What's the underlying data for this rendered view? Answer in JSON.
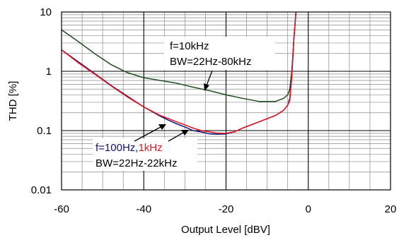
{
  "chart_data": {
    "type": "line",
    "xlabel": "Output Level  [dBV]",
    "ylabel": "THD  [%]",
    "xlim": [
      -60,
      20
    ],
    "ylim": [
      0.01,
      10
    ],
    "yscale": "log",
    "grid": true,
    "x_ticks": [
      "-60",
      "-40",
      "-20",
      "0",
      "20"
    ],
    "y_ticks": [
      "0.01",
      "0.1",
      "1",
      "10"
    ],
    "series": [
      {
        "color": "#1f4d1f",
        "x": [
          -60,
          -56,
          -52,
          -48,
          -44,
          -40,
          -36,
          -32,
          -28,
          -24,
          -20,
          -16,
          -12,
          -8,
          -6,
          -5,
          -4.5,
          -4,
          -3.5,
          -3
        ],
        "y": [
          5.0,
          3.2,
          2.0,
          1.3,
          0.95,
          0.78,
          0.7,
          0.63,
          0.54,
          0.47,
          0.4,
          0.35,
          0.31,
          0.31,
          0.35,
          0.4,
          0.5,
          1.0,
          3.5,
          10
        ]
      },
      {
        "color": "#10107a",
        "x": [
          -60,
          -56,
          -52,
          -48,
          -44,
          -40,
          -36,
          -34,
          -32,
          -30,
          -28,
          -26,
          -24,
          -22,
          -20,
          -18,
          -16,
          -12,
          -8,
          -6,
          -5,
          -4.5,
          -4,
          -3.5,
          -3
        ],
        "y": [
          2.3,
          1.45,
          0.92,
          0.58,
          0.38,
          0.25,
          0.175,
          0.15,
          0.13,
          0.115,
          0.1,
          0.095,
          0.088,
          0.087,
          0.088,
          0.095,
          0.11,
          0.14,
          0.18,
          0.22,
          0.27,
          0.35,
          0.9,
          3.5,
          10
        ]
      },
      {
        "color": "#e8141c",
        "x": [
          -60,
          -56,
          -52,
          -48,
          -44,
          -40,
          -36,
          -34,
          -32,
          -30,
          -28,
          -26,
          -24,
          -22,
          -20,
          -18,
          -16,
          -12,
          -8,
          -6,
          -5,
          -4.5,
          -4,
          -3.5,
          -3
        ],
        "y": [
          2.3,
          1.4,
          0.9,
          0.57,
          0.37,
          0.25,
          0.18,
          0.16,
          0.14,
          0.125,
          0.11,
          0.1,
          0.095,
          0.09,
          0.09,
          0.095,
          0.11,
          0.14,
          0.18,
          0.22,
          0.27,
          0.32,
          0.8,
          3.5,
          10
        ]
      }
    ],
    "annotations": {
      "green_label_1": "f=10kHz",
      "green_label_2": "BW=22Hz-80kHz",
      "low_label_part1": "f=100Hz,",
      "low_label_part2": "1kHz",
      "low_label_line2": "BW=22Hz-22kHz"
    },
    "colors": {
      "f10k": "#1f4d1f",
      "f100": "#10107a",
      "f1k": "#e8141c"
    }
  }
}
